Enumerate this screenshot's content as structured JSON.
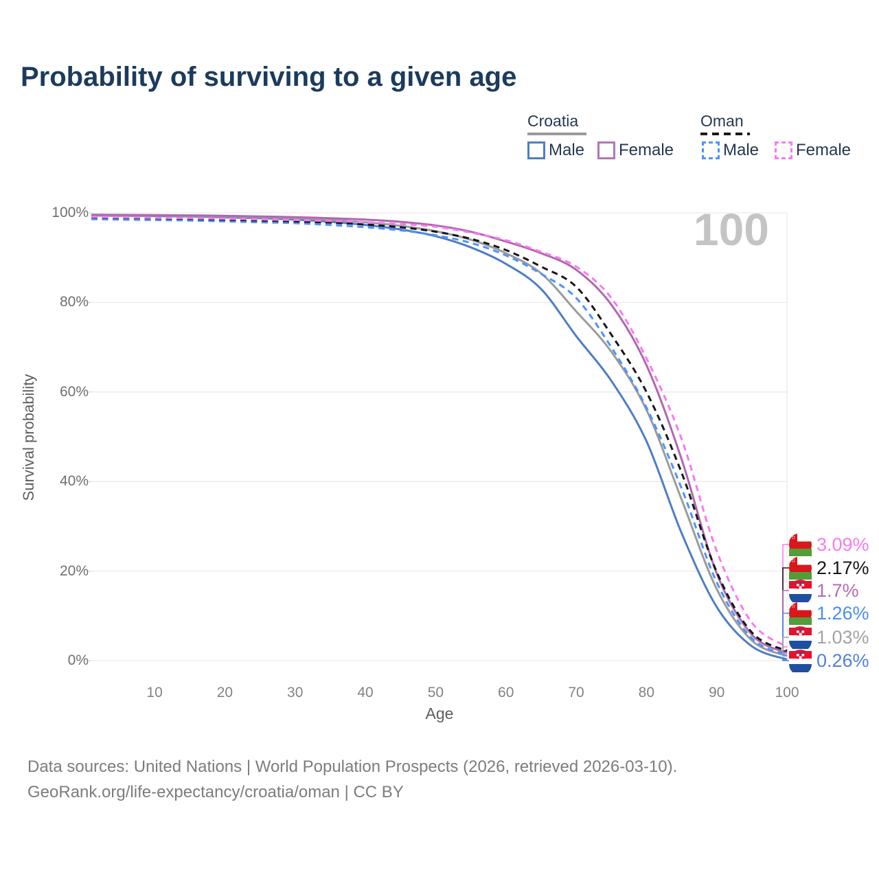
{
  "title": "Probability of surviving to a given age",
  "watermark": "100",
  "legend": {
    "groups": [
      {
        "label": "Croatia",
        "line_style": "solid",
        "underline_color": "#999999",
        "items": [
          {
            "label": "Male",
            "color": "#4d7ec2",
            "dashed": false
          },
          {
            "label": "Female",
            "color": "#b077b0",
            "dashed": false
          }
        ]
      },
      {
        "label": "Oman",
        "line_style": "dashed",
        "underline_color": "#1a1a1a",
        "items": [
          {
            "label": "Male",
            "color": "#4b93ff",
            "dashed": true
          },
          {
            "label": "Female",
            "color": "#fb78f2",
            "dashed": true
          }
        ]
      }
    ]
  },
  "axes": {
    "y_label": "Survival probability",
    "x_label": "Age",
    "y_ticks": [
      {
        "value": 100,
        "label": "100%"
      },
      {
        "value": 80,
        "label": "80%"
      },
      {
        "value": 60,
        "label": "60%"
      },
      {
        "value": 40,
        "label": "40%"
      },
      {
        "value": 20,
        "label": "20%"
      },
      {
        "value": 0,
        "label": "0%"
      }
    ],
    "x_ticks": [
      {
        "value": 10,
        "label": "10"
      },
      {
        "value": 20,
        "label": "20"
      },
      {
        "value": 30,
        "label": "30"
      },
      {
        "value": 40,
        "label": "40"
      },
      {
        "value": 50,
        "label": "50"
      },
      {
        "value": 60,
        "label": "60"
      },
      {
        "value": 70,
        "label": "70"
      },
      {
        "value": 80,
        "label": "80"
      },
      {
        "value": 90,
        "label": "90"
      },
      {
        "value": 100,
        "label": "100"
      }
    ]
  },
  "chart_data": {
    "type": "line",
    "title": "Probability of surviving to a given age",
    "xlabel": "Age",
    "ylabel": "Survival probability",
    "xlim": [
      1,
      100
    ],
    "ylim_pct": [
      0,
      100
    ],
    "grid": "horizontal",
    "ages": [
      1,
      5,
      10,
      15,
      20,
      25,
      30,
      35,
      40,
      45,
      50,
      55,
      60,
      65,
      70,
      75,
      80,
      85,
      90,
      95,
      100
    ],
    "series": [
      {
        "name": "Croatia Male",
        "country": "croatia",
        "sex": "male",
        "color": "#4d7dc6",
        "dashed": false,
        "values_pct": [
          99.4,
          99.35,
          99.3,
          99.2,
          99.0,
          98.8,
          98.5,
          98.0,
          97.3,
          96.3,
          94.8,
          92.3,
          88.6,
          83.0,
          72.5,
          62.5,
          49.0,
          28.5,
          12.0,
          3.2,
          0.26
        ]
      },
      {
        "name": "Croatia Both",
        "country": "croatia",
        "sex": "both",
        "color": "#9b9b9b",
        "dashed": false,
        "values_pct": [
          99.5,
          99.45,
          99.4,
          99.3,
          99.2,
          99.0,
          98.8,
          98.4,
          97.9,
          97.1,
          95.9,
          94.0,
          91.0,
          86.5,
          78.0,
          69.0,
          56.0,
          36.0,
          16.0,
          4.5,
          1.03
        ]
      },
      {
        "name": "Croatia Female",
        "country": "croatia",
        "sex": "female",
        "color": "#ae68ae",
        "dashed": false,
        "values_pct": [
          99.6,
          99.55,
          99.5,
          99.45,
          99.35,
          99.2,
          99.05,
          98.8,
          98.5,
          98.0,
          97.2,
          95.8,
          93.6,
          91.0,
          87.3,
          79.5,
          66.0,
          45.0,
          19.5,
          5.8,
          1.7
        ]
      },
      {
        "name": "Oman Male",
        "country": "oman",
        "sex": "male",
        "color": "#4b93ff",
        "dashed": true,
        "values_pct": [
          98.6,
          98.5,
          98.4,
          98.3,
          98.1,
          97.9,
          97.7,
          97.3,
          96.8,
          96.1,
          95.0,
          93.3,
          90.5,
          86.4,
          81.0,
          70.0,
          56.5,
          38.5,
          17.5,
          5.0,
          1.26
        ]
      },
      {
        "name": "Oman Both",
        "country": "oman",
        "sex": "both",
        "color": "#161616",
        "dashed": true,
        "values_pct": [
          99.0,
          98.9,
          98.8,
          98.65,
          98.5,
          98.3,
          98.1,
          97.8,
          97.4,
          96.8,
          95.8,
          94.2,
          91.7,
          88.0,
          83.5,
          72.8,
          60.0,
          42.0,
          19.8,
          6.3,
          2.17
        ]
      },
      {
        "name": "Oman Female",
        "country": "oman",
        "sex": "female",
        "color": "#fb78f2",
        "dashed": true,
        "values_pct": [
          99.1,
          99.0,
          98.9,
          98.8,
          98.7,
          98.55,
          98.4,
          98.2,
          97.95,
          97.5,
          96.9,
          95.6,
          93.9,
          91.3,
          88.0,
          81.0,
          67.5,
          49.5,
          24.5,
          8.5,
          3.09
        ]
      }
    ],
    "end_labels": [
      {
        "text": "3.09%",
        "pct": 3.09,
        "series": "Oman Female",
        "flag": "oman",
        "color": "#fb78f2"
      },
      {
        "text": "2.17%",
        "pct": 2.17,
        "series": "Oman Both",
        "flag": "oman",
        "color": "#161616"
      },
      {
        "text": "1.7%",
        "pct": 1.7,
        "series": "Croatia Female",
        "flag": "croatia",
        "color": "#b26db2"
      },
      {
        "text": "1.26%",
        "pct": 1.26,
        "series": "Oman Male",
        "flag": "oman",
        "color": "#4b8bf5"
      },
      {
        "text": "1.03%",
        "pct": 1.03,
        "series": "Croatia Both",
        "flag": "croatia",
        "color": "#a3a3a3"
      },
      {
        "text": "0.26%",
        "pct": 0.26,
        "series": "Croatia Male",
        "flag": "croatia",
        "color": "#527fdd"
      }
    ],
    "age_counter": "100"
  },
  "footer": {
    "line1": "Data sources: United Nations | World Population Prospects (2026, retrieved 2026-03-10).",
    "line2": "GeoRank.org/life-expectancy/croatia/oman | CC BY"
  }
}
